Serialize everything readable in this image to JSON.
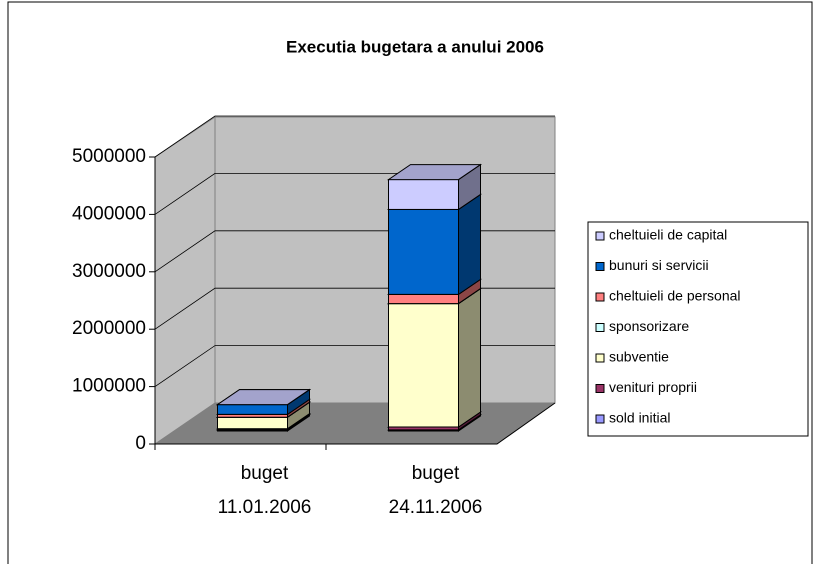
{
  "chart_data": {
    "type": "bar3d_stacked",
    "title": "Executia bugetara a anului 2006",
    "categories": [
      [
        "buget",
        "11.01.2006"
      ],
      [
        "buget",
        "24.11.2006"
      ]
    ],
    "series": [
      {
        "name": "sold initial",
        "color": "#9999ff",
        "values": [
          20000,
          20000
        ]
      },
      {
        "name": "venituri proprii",
        "color": "#993366",
        "values": [
          20000,
          50000
        ]
      },
      {
        "name": "subventie",
        "color": "#ffffcc",
        "values": [
          200000,
          2150000
        ]
      },
      {
        "name": "sponsorizare",
        "color": "#ccffff",
        "values": [
          0,
          0
        ]
      },
      {
        "name": "cheltuieli de personal",
        "color": "#ff8080",
        "values": [
          50000,
          160000
        ]
      },
      {
        "name": "bunuri si servicii",
        "color": "#0066cc",
        "values": [
          170000,
          1480000
        ]
      },
      {
        "name": "cheltuieli de capital",
        "color": "#ccccff",
        "values": [
          0,
          520000
        ]
      }
    ],
    "ylim": [
      0,
      5000000
    ],
    "yticks": [
      0,
      1000000,
      2000000,
      3000000,
      4000000,
      5000000
    ],
    "grid": true,
    "legend": "right"
  }
}
